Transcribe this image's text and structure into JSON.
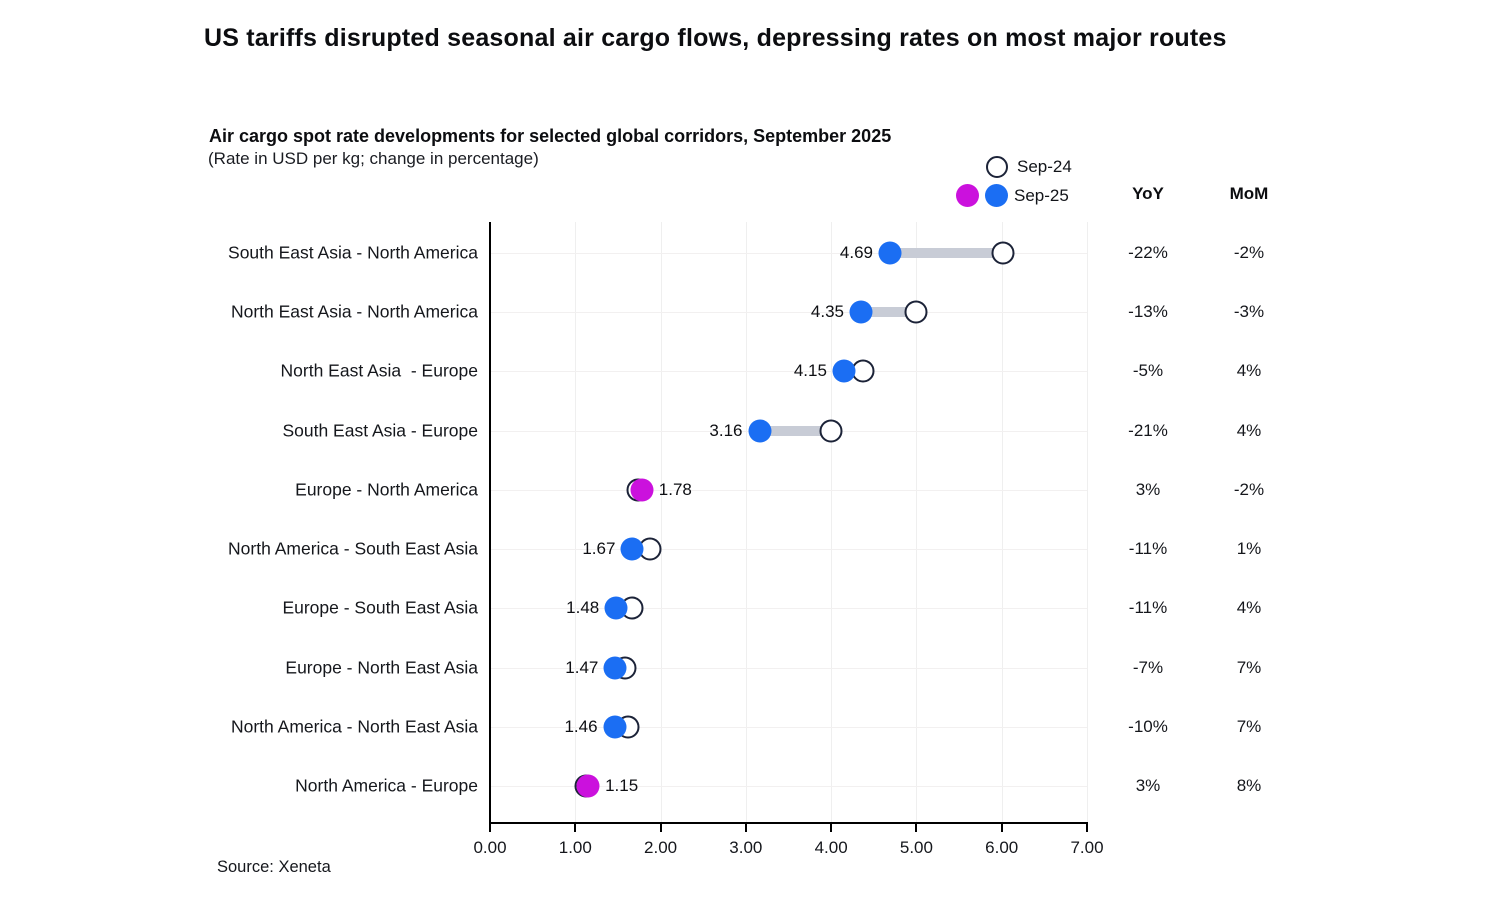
{
  "title": "US tariffs disrupted seasonal air cargo flows, depressing rates on most major routes",
  "subtitle": "Air cargo spot rate developments for selected global corridors, September 2025",
  "subtitle_note": "(Rate in USD per kg; change in percentage)",
  "legend": {
    "sep24_label": "Sep-24",
    "sep25_label": "Sep-25"
  },
  "columns": {
    "yoy": "YoY",
    "mom": "MoM"
  },
  "source": "Source: Xeneta",
  "colors": {
    "sep25_blue": "#1b6ef3",
    "sep25_magenta": "#cb11dd",
    "sep24_ring": "#1c2338",
    "connector": "#c8ccd6",
    "axis": "#000000"
  },
  "chart_data": {
    "type": "dumbbell",
    "title": "Air cargo spot rate developments for selected global corridors, September 2025",
    "unit": "USD per kg",
    "xlim": [
      0,
      7
    ],
    "x_ticks": [
      "0.00",
      "1.00",
      "2.00",
      "3.00",
      "4.00",
      "5.00",
      "6.00",
      "7.00"
    ],
    "legend_position": "top-right",
    "series_names": [
      "Sep-24",
      "Sep-25"
    ],
    "rows": [
      {
        "label": "South East Asia - North America",
        "sep25": 4.69,
        "sep24": 6.01,
        "value_label": "4.69",
        "yoy": "-22%",
        "mom": "-2%",
        "color": "blue"
      },
      {
        "label": "North East Asia - North America",
        "sep25": 4.35,
        "sep24": 5.0,
        "value_label": "4.35",
        "yoy": "-13%",
        "mom": "-3%",
        "color": "blue"
      },
      {
        "label": "North East Asia  - Europe",
        "sep25": 4.15,
        "sep24": 4.37,
        "value_label": "4.15",
        "yoy": "-5%",
        "mom": "4%",
        "color": "blue"
      },
      {
        "label": "South East Asia - Europe",
        "sep25": 3.16,
        "sep24": 4.0,
        "value_label": "3.16",
        "yoy": "-21%",
        "mom": "4%",
        "color": "blue"
      },
      {
        "label": "Europe - North America",
        "sep25": 1.78,
        "sep24": 1.73,
        "value_label": "1.78",
        "yoy": "3%",
        "mom": "-2%",
        "color": "magenta"
      },
      {
        "label": "North America - South East Asia",
        "sep25": 1.67,
        "sep24": 1.88,
        "value_label": "1.67",
        "yoy": "-11%",
        "mom": "1%",
        "color": "blue"
      },
      {
        "label": "Europe - South East Asia",
        "sep25": 1.48,
        "sep24": 1.66,
        "value_label": "1.48",
        "yoy": "-11%",
        "mom": "4%",
        "color": "blue"
      },
      {
        "label": "Europe - North East Asia",
        "sep25": 1.47,
        "sep24": 1.58,
        "value_label": "1.47",
        "yoy": "-7%",
        "mom": "7%",
        "color": "blue"
      },
      {
        "label": "North America - North East Asia",
        "sep25": 1.46,
        "sep24": 1.62,
        "value_label": "1.46",
        "yoy": "-10%",
        "mom": "7%",
        "color": "blue"
      },
      {
        "label": "North America - Europe",
        "sep25": 1.15,
        "sep24": 1.12,
        "value_label": "1.15",
        "yoy": "3%",
        "mom": "8%",
        "color": "magenta"
      }
    ]
  }
}
